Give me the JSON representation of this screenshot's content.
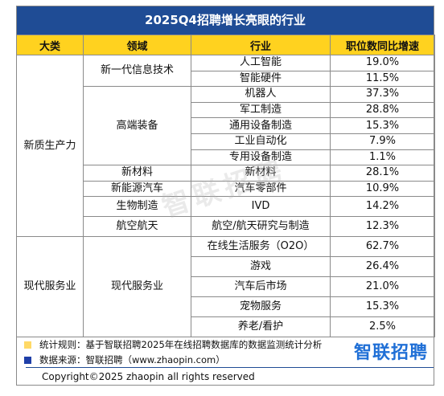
{
  "title": "2025Q4招聘增长亮眼的行业",
  "headers": [
    "大类",
    "领域",
    "行业",
    "职位数同比增速"
  ],
  "categories": {
    "new_quality": "新质生产力",
    "modern_service": "现代服务业"
  },
  "fields": {
    "next_gen_it": "新一代信息技术",
    "high_end_equipment": "高端装备",
    "new_materials": "新材料",
    "new_energy_vehicles": "新能源汽车",
    "biomanufacturing": "生物制造",
    "aerospace": "航空航天",
    "modern_service": "现代服务业"
  },
  "rows": [
    {
      "industry": "人工智能",
      "growth": "19.0%"
    },
    {
      "industry": "智能硬件",
      "growth": "11.5%"
    },
    {
      "industry": "机器人",
      "growth": "37.3%"
    },
    {
      "industry": "军工制造",
      "growth": "28.8%"
    },
    {
      "industry": "通用设备制造",
      "growth": "15.3%"
    },
    {
      "industry": "工业自动化",
      "growth": "7.9%"
    },
    {
      "industry": "专用设备制造",
      "growth": "1.1%"
    },
    {
      "industry": "新材料",
      "growth": "28.1%"
    },
    {
      "industry": "汽车零部件",
      "growth": "10.9%"
    },
    {
      "industry": "IVD",
      "growth": "14.2%"
    },
    {
      "industry": "航空/航天研究与制造",
      "growth": "12.3%"
    },
    {
      "industry": "在线生活服务（O2O）",
      "growth": "62.7%"
    },
    {
      "industry": "游戏",
      "growth": "26.4%"
    },
    {
      "industry": "汽车后市场",
      "growth": "21.0%"
    },
    {
      "industry": "宠物服务",
      "growth": "15.3%"
    },
    {
      "industry": "养老/看护",
      "growth": "2.5%"
    }
  ],
  "notes": {
    "rule": "统计规则：基于智联招聘2025年在线招聘数据库的数据监测统计分析",
    "source": "数据来源：智联招聘（www.zhaopin.com）",
    "copyright": "Copyright©2025 zhaopin all rights reserved",
    "brand": "智联招聘",
    "watermark": "智联招聘"
  },
  "colors": {
    "header_blue": "#1f4c95",
    "header_yellow": "#ffd21f",
    "bullet_yellow": "#ffd966",
    "bullet_blue": "#1f3fa8",
    "brand_blue": "#1f6fd6"
  }
}
